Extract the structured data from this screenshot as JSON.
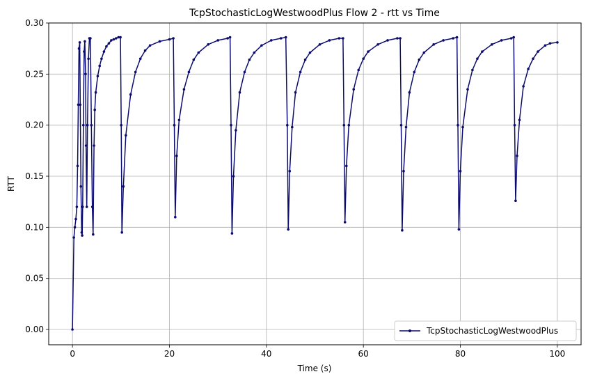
{
  "chart_data": {
    "type": "line",
    "title": "TcpStochasticLogWestwoodPlus Flow 2 - rtt vs Time",
    "xlabel": "Time (s)",
    "ylabel": "RTT",
    "xlim": [
      -4.9,
      104.9
    ],
    "ylim": [
      -0.015,
      0.3
    ],
    "xticks": [
      0,
      20,
      40,
      60,
      80,
      100
    ],
    "xtick_labels": [
      "0",
      "20",
      "40",
      "60",
      "80",
      "100"
    ],
    "yticks": [
      0.0,
      0.05,
      0.1,
      0.15,
      0.2,
      0.25,
      0.3
    ],
    "ytick_labels": [
      "0.00",
      "0.05",
      "0.10",
      "0.15",
      "0.20",
      "0.25",
      "0.30"
    ],
    "grid": true,
    "legend_position": "lower-right",
    "color": "#0b0b6e",
    "series": [
      {
        "name": "TcpStochasticLogWestwoodPlus",
        "x": [
          0.0,
          0.3,
          0.5,
          0.7,
          0.9,
          1.05,
          1.2,
          1.35,
          1.5,
          1.6,
          1.75,
          1.9,
          2.0,
          2.1,
          2.25,
          2.4,
          2.55,
          2.7,
          2.8,
          2.95,
          3.1,
          3.3,
          3.5,
          3.7,
          3.9,
          4.1,
          4.25,
          4.45,
          4.6,
          4.8,
          5.2,
          5.6,
          6.0,
          6.5,
          7.0,
          7.5,
          8.0,
          8.5,
          9.0,
          9.5,
          9.9,
          10.05,
          10.2,
          10.5,
          11.0,
          12.0,
          13.0,
          14.0,
          15.0,
          16.0,
          18.0,
          20.0,
          20.8,
          21.0,
          21.2,
          21.5,
          22.0,
          23.0,
          24.0,
          25.0,
          26.0,
          28.0,
          30.0,
          32.0,
          32.5,
          32.7,
          32.9,
          33.2,
          33.7,
          34.5,
          35.5,
          36.5,
          37.5,
          39.0,
          41.0,
          43.0,
          44.0,
          44.3,
          44.5,
          44.8,
          45.3,
          46.0,
          47.0,
          48.0,
          49.0,
          51.0,
          53.0,
          55.0,
          55.8,
          56.0,
          56.2,
          56.5,
          57.0,
          58.0,
          59.0,
          60.0,
          61.0,
          63.0,
          65.0,
          67.0,
          67.6,
          67.8,
          68.0,
          68.3,
          68.8,
          69.5,
          70.5,
          71.5,
          72.5,
          74.5,
          76.5,
          78.5,
          79.3,
          79.5,
          79.7,
          80.0,
          80.5,
          81.5,
          82.5,
          83.5,
          84.5,
          86.5,
          88.5,
          90.5,
          91.0,
          91.2,
          91.4,
          91.7,
          92.2,
          93.0,
          94.0,
          95.0,
          96.0,
          97.5,
          98.5,
          100.0
        ],
        "values": [
          0.0,
          0.09,
          0.1,
          0.108,
          0.12,
          0.16,
          0.22,
          0.275,
          0.281,
          0.22,
          0.14,
          0.095,
          0.092,
          0.12,
          0.2,
          0.272,
          0.282,
          0.25,
          0.18,
          0.12,
          0.2,
          0.265,
          0.285,
          0.285,
          0.2,
          0.12,
          0.093,
          0.18,
          0.215,
          0.232,
          0.248,
          0.258,
          0.265,
          0.272,
          0.277,
          0.28,
          0.283,
          0.284,
          0.285,
          0.286,
          0.286,
          0.2,
          0.095,
          0.14,
          0.19,
          0.23,
          0.252,
          0.265,
          0.273,
          0.278,
          0.282,
          0.284,
          0.285,
          0.2,
          0.11,
          0.17,
          0.205,
          0.235,
          0.252,
          0.264,
          0.271,
          0.279,
          0.283,
          0.285,
          0.286,
          0.2,
          0.094,
          0.15,
          0.195,
          0.232,
          0.252,
          0.264,
          0.271,
          0.278,
          0.283,
          0.285,
          0.286,
          0.2,
          0.098,
          0.155,
          0.198,
          0.232,
          0.252,
          0.264,
          0.271,
          0.279,
          0.283,
          0.285,
          0.285,
          0.2,
          0.105,
          0.16,
          0.2,
          0.235,
          0.254,
          0.265,
          0.272,
          0.279,
          0.283,
          0.285,
          0.285,
          0.2,
          0.097,
          0.155,
          0.198,
          0.232,
          0.252,
          0.264,
          0.271,
          0.279,
          0.283,
          0.285,
          0.286,
          0.2,
          0.098,
          0.155,
          0.198,
          0.235,
          0.254,
          0.265,
          0.272,
          0.279,
          0.283,
          0.285,
          0.286,
          0.2,
          0.126,
          0.17,
          0.205,
          0.238,
          0.255,
          0.265,
          0.272,
          0.278,
          0.28,
          0.281
        ]
      }
    ]
  }
}
